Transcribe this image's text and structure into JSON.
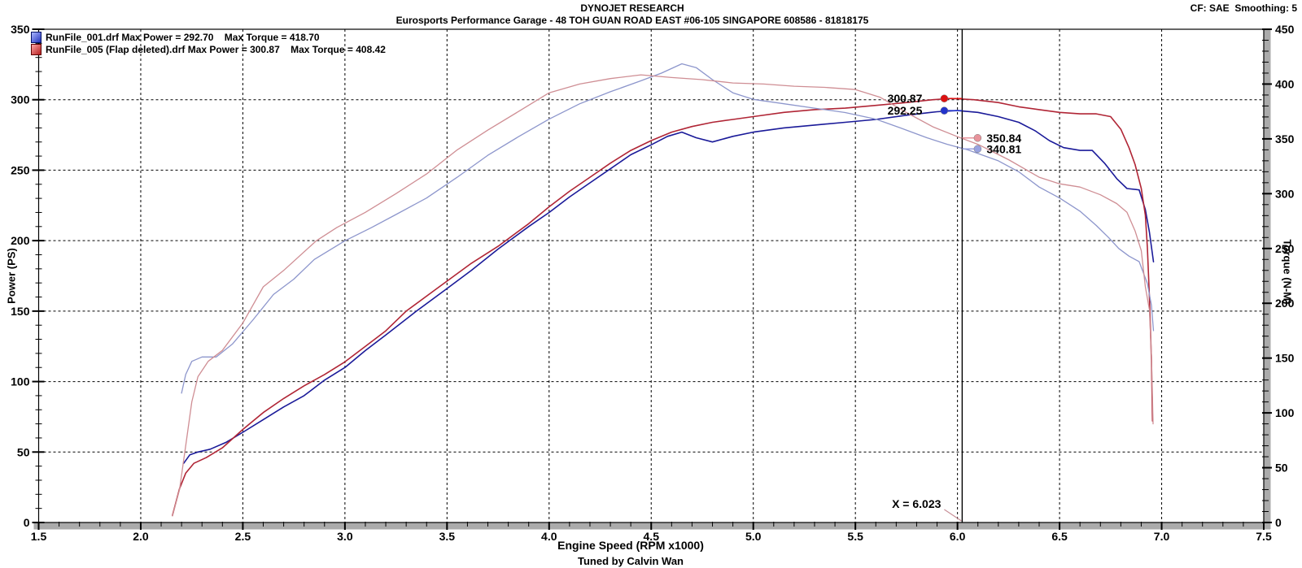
{
  "header": {
    "brand": "DYNOJET RESEARCH",
    "subtitle": "Eurosports Performance Garage - 48 TOH GUAN ROAD EAST #06-105 SINGAPORE 608586 - 81818175",
    "correction": "CF: SAE  Smoothing: 5"
  },
  "footer": {
    "tuned_by": "Tuned by Calvin Wan"
  },
  "legend": [
    {
      "marker_icon": "blue-gradient-square",
      "marker_colors": [
        "#aab6ff",
        "#2333bb"
      ],
      "text": "RunFile_001.drf Max Power = 292.70    Max Torque = 418.70",
      "max_power": 292.7,
      "max_torque": 418.7
    },
    {
      "marker_icon": "red-gradient-square",
      "marker_colors": [
        "#ffa6a6",
        "#b51d1d"
      ],
      "text": "RunFile_005 (Flap deleted).drf Max Power = 300.87    Max Torque = 408.42",
      "max_power": 300.87,
      "max_torque": 408.42
    }
  ],
  "chart_data": {
    "type": "line",
    "title": "DYNOJET RESEARCH",
    "xlabel": "Engine Speed (RPM x1000)",
    "x_range": [
      1.5,
      7.5
    ],
    "x_major": 0.5,
    "x_minor": 0.1,
    "left_axis": {
      "label": "Power (PS)",
      "range": [
        0,
        350
      ],
      "major": 50,
      "minor": 10
    },
    "right_axis": {
      "label": "Torque (N-M)",
      "range": [
        0,
        450
      ],
      "major": 50,
      "minor": 10
    },
    "grid": {
      "v_from": 2.0,
      "v_to": 7.0,
      "v_step": 0.5,
      "h_values": [
        50,
        100,
        150,
        200,
        250,
        300
      ]
    },
    "series": [
      {
        "id": "power-runfile-001",
        "name": "RunFile_001.drf Power",
        "axis": "left",
        "color": "#1a1a99",
        "width": 1.6,
        "points": [
          [
            2.21,
            42
          ],
          [
            2.24,
            48
          ],
          [
            2.28,
            50
          ],
          [
            2.34,
            52
          ],
          [
            2.42,
            57
          ],
          [
            2.5,
            64
          ],
          [
            2.6,
            73
          ],
          [
            2.7,
            82
          ],
          [
            2.8,
            90
          ],
          [
            2.9,
            101
          ],
          [
            3.0,
            110
          ],
          [
            3.1,
            122
          ],
          [
            3.2,
            133
          ],
          [
            3.35,
            150
          ],
          [
            3.5,
            166
          ],
          [
            3.62,
            179
          ],
          [
            3.75,
            194
          ],
          [
            3.9,
            210
          ],
          [
            4.0,
            220
          ],
          [
            4.1,
            231
          ],
          [
            4.2,
            241
          ],
          [
            4.3,
            251
          ],
          [
            4.4,
            261
          ],
          [
            4.5,
            268
          ],
          [
            4.58,
            274
          ],
          [
            4.65,
            277
          ],
          [
            4.72,
            273
          ],
          [
            4.8,
            270
          ],
          [
            4.9,
            274
          ],
          [
            5.0,
            277
          ],
          [
            5.15,
            280
          ],
          [
            5.3,
            282
          ],
          [
            5.45,
            284
          ],
          [
            5.6,
            286
          ],
          [
            5.75,
            289
          ],
          [
            5.9,
            291.5
          ],
          [
            6.0,
            292.3
          ],
          [
            6.1,
            291
          ],
          [
            6.2,
            288
          ],
          [
            6.3,
            284
          ],
          [
            6.38,
            278
          ],
          [
            6.45,
            271
          ],
          [
            6.52,
            266
          ],
          [
            6.6,
            264
          ],
          [
            6.66,
            264
          ],
          [
            6.72,
            255
          ],
          [
            6.78,
            244
          ],
          [
            6.83,
            237
          ],
          [
            6.89,
            236
          ],
          [
            6.92,
            222
          ],
          [
            6.94,
            206
          ],
          [
            6.96,
            185
          ]
        ]
      },
      {
        "id": "power-runfile-005",
        "name": "RunFile_005 (Flap deleted).drf Power",
        "axis": "left",
        "color": "#b02535",
        "width": 1.6,
        "points": [
          [
            2.155,
            5
          ],
          [
            2.19,
            24
          ],
          [
            2.22,
            35
          ],
          [
            2.26,
            42
          ],
          [
            2.32,
            46
          ],
          [
            2.4,
            53
          ],
          [
            2.5,
            66
          ],
          [
            2.6,
            78
          ],
          [
            2.7,
            88
          ],
          [
            2.8,
            97
          ],
          [
            2.9,
            105
          ],
          [
            3.0,
            114
          ],
          [
            3.1,
            125
          ],
          [
            3.2,
            136
          ],
          [
            3.3,
            150
          ],
          [
            3.45,
            166
          ],
          [
            3.62,
            184
          ],
          [
            3.75,
            196
          ],
          [
            3.9,
            212
          ],
          [
            4.0,
            224
          ],
          [
            4.1,
            235
          ],
          [
            4.2,
            245
          ],
          [
            4.3,
            255
          ],
          [
            4.4,
            264
          ],
          [
            4.5,
            271
          ],
          [
            4.6,
            277
          ],
          [
            4.7,
            281
          ],
          [
            4.8,
            284
          ],
          [
            4.9,
            286
          ],
          [
            5.0,
            288
          ],
          [
            5.15,
            291
          ],
          [
            5.3,
            293
          ],
          [
            5.45,
            294
          ],
          [
            5.6,
            296
          ],
          [
            5.75,
            298
          ],
          [
            5.88,
            300
          ],
          [
            5.97,
            300.9
          ],
          [
            6.08,
            300
          ],
          [
            6.2,
            298
          ],
          [
            6.3,
            295
          ],
          [
            6.4,
            293
          ],
          [
            6.5,
            291
          ],
          [
            6.6,
            290
          ],
          [
            6.68,
            290
          ],
          [
            6.75,
            288
          ],
          [
            6.8,
            279
          ],
          [
            6.84,
            266
          ],
          [
            6.87,
            254
          ],
          [
            6.9,
            237
          ],
          [
            6.92,
            218
          ],
          [
            6.93,
            195
          ],
          [
            6.94,
            160
          ],
          [
            6.95,
            115
          ],
          [
            6.955,
            72
          ]
        ]
      },
      {
        "id": "torque-runfile-001",
        "name": "RunFile_001.drf Torque",
        "axis": "right",
        "color": "#8d96cc",
        "width": 1.3,
        "points": [
          [
            2.2,
            118
          ],
          [
            2.22,
            135
          ],
          [
            2.25,
            147
          ],
          [
            2.3,
            151
          ],
          [
            2.37,
            151
          ],
          [
            2.45,
            163
          ],
          [
            2.55,
            185
          ],
          [
            2.65,
            208
          ],
          [
            2.75,
            222
          ],
          [
            2.85,
            240
          ],
          [
            3.0,
            257
          ],
          [
            3.13,
            269
          ],
          [
            3.25,
            281
          ],
          [
            3.4,
            296
          ],
          [
            3.55,
            315
          ],
          [
            3.7,
            335
          ],
          [
            3.85,
            352
          ],
          [
            4.0,
            368
          ],
          [
            4.15,
            382
          ],
          [
            4.3,
            393
          ],
          [
            4.45,
            403
          ],
          [
            4.55,
            410
          ],
          [
            4.65,
            418.5
          ],
          [
            4.72,
            415
          ],
          [
            4.8,
            404
          ],
          [
            4.9,
            392
          ],
          [
            5.0,
            386
          ],
          [
            5.15,
            382
          ],
          [
            5.3,
            378
          ],
          [
            5.45,
            374
          ],
          [
            5.6,
            368
          ],
          [
            5.72,
            360
          ],
          [
            5.85,
            351
          ],
          [
            5.95,
            345
          ],
          [
            6.05,
            340
          ],
          [
            6.2,
            330
          ],
          [
            6.3,
            320
          ],
          [
            6.4,
            306
          ],
          [
            6.5,
            296
          ],
          [
            6.6,
            284
          ],
          [
            6.68,
            271
          ],
          [
            6.74,
            260
          ],
          [
            6.79,
            250
          ],
          [
            6.84,
            243
          ],
          [
            6.89,
            238
          ],
          [
            6.93,
            218
          ],
          [
            6.95,
            198
          ],
          [
            6.96,
            175
          ]
        ]
      },
      {
        "id": "torque-runfile-005",
        "name": "RunFile_005 (Flap deleted).drf Torque",
        "axis": "right",
        "color": "#cf8e94",
        "width": 1.3,
        "points": [
          [
            2.155,
            6
          ],
          [
            2.19,
            30
          ],
          [
            2.22,
            70
          ],
          [
            2.25,
            110
          ],
          [
            2.28,
            133
          ],
          [
            2.33,
            147
          ],
          [
            2.4,
            157
          ],
          [
            2.5,
            182
          ],
          [
            2.6,
            215
          ],
          [
            2.7,
            230
          ],
          [
            2.86,
            257
          ],
          [
            2.96,
            269
          ],
          [
            3.1,
            283
          ],
          [
            3.25,
            300
          ],
          [
            3.4,
            318
          ],
          [
            3.55,
            340
          ],
          [
            3.7,
            358
          ],
          [
            3.85,
            375
          ],
          [
            4.0,
            392
          ],
          [
            4.15,
            400
          ],
          [
            4.3,
            405
          ],
          [
            4.45,
            408.4
          ],
          [
            4.6,
            406
          ],
          [
            4.75,
            404
          ],
          [
            4.9,
            401
          ],
          [
            5.05,
            400
          ],
          [
            5.2,
            398
          ],
          [
            5.35,
            397
          ],
          [
            5.5,
            395
          ],
          [
            5.62,
            388
          ],
          [
            5.75,
            374
          ],
          [
            5.88,
            361
          ],
          [
            6.0,
            352
          ],
          [
            6.1,
            345
          ],
          [
            6.25,
            331
          ],
          [
            6.4,
            315
          ],
          [
            6.5,
            309
          ],
          [
            6.6,
            306
          ],
          [
            6.7,
            299
          ],
          [
            6.78,
            291
          ],
          [
            6.83,
            283
          ],
          [
            6.87,
            266
          ],
          [
            6.9,
            248
          ],
          [
            6.92,
            215
          ],
          [
            6.94,
            194
          ],
          [
            6.95,
            152
          ],
          [
            6.958,
            90
          ]
        ]
      }
    ],
    "cursor": {
      "x": 6.023,
      "label": "X = 6.023",
      "pointer_color": "#c89098",
      "markers": [
        {
          "label": "300.87",
          "value": 300.87,
          "axis": "left",
          "side": "left",
          "color": "#dd1111"
        },
        {
          "label": "292.25",
          "value": 292.25,
          "axis": "left",
          "side": "left",
          "color": "#2233cc"
        },
        {
          "label": "350.84",
          "value": 350.84,
          "axis": "right",
          "side": "right",
          "color": "#e8939b"
        },
        {
          "label": "340.81",
          "value": 340.81,
          "axis": "right",
          "side": "right",
          "color": "#99a2e0"
        }
      ]
    },
    "frame_colors": {
      "axis_bar": "#ababab",
      "grid": "#000000",
      "background": "#ffffff"
    }
  }
}
